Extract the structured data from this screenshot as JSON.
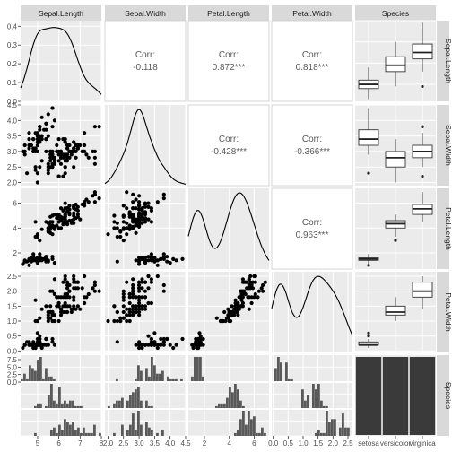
{
  "chart_data": {
    "type": "scatter",
    "variables": [
      "Sepal.Length",
      "Sepal.Width",
      "Petal.Length",
      "Petal.Width",
      "Species"
    ],
    "species_levels": [
      "setosa",
      "versicolor",
      "virginica"
    ],
    "species_tick_labels": [
      "setosa",
      "versicolor",
      "virginica"
    ],
    "colors": {
      "panel_bg": "#ebebeb",
      "grid": "#ffffff",
      "strip_bg": "#d9d9d9",
      "box_fill": "#ffffff",
      "bar_fill": "#595959",
      "points": "#000000",
      "border": "#cccccc"
    },
    "grid": true,
    "axes": {
      "Sepal.Length": {
        "range": [
          4.2,
          8.0
        ],
        "ticks": [
          5,
          6,
          7,
          8
        ],
        "tick_labels": [
          "5",
          "6",
          "7",
          "8"
        ]
      },
      "Sepal.Width": {
        "range": [
          1.9,
          4.5
        ],
        "ticks": [
          2.0,
          2.5,
          3.0,
          3.5,
          4.0,
          4.5
        ],
        "tick_labels": [
          "2.0",
          "2.5",
          "3.0",
          "3.5",
          "4.0",
          "4.5"
        ]
      },
      "Petal.Length": {
        "range": [
          0.7,
          7.2
        ],
        "ticks": [
          2,
          4,
          6
        ],
        "tick_labels": [
          "2",
          "4",
          "6"
        ]
      },
      "Petal.Width": {
        "range": [
          -0.05,
          2.65
        ],
        "ticks": [
          0.0,
          0.5,
          1.0,
          1.5,
          2.0,
          2.5
        ],
        "tick_labels": [
          "0.0",
          "0.5",
          "1.0",
          "1.5",
          "2.0",
          "2.5"
        ]
      }
    },
    "left_axis": {
      "row1": {
        "range": [
          0,
          0.43
        ],
        "ticks": [
          0.0,
          0.1,
          0.2,
          0.3,
          0.4
        ],
        "tick_labels": [
          "0.0",
          "0.1",
          "0.2",
          "0.3",
          "0.4"
        ]
      },
      "row5": {
        "ticks": [
          0.0,
          2.5,
          5.0,
          7.5
        ],
        "tick_labels": [
          "0.0",
          "2.5",
          "5.0",
          "7.5"
        ]
      }
    },
    "correlations": [
      {
        "row": "Sepal.Length",
        "col": "Sepal.Width",
        "label": "Corr:",
        "value": "-0.118"
      },
      {
        "row": "Sepal.Length",
        "col": "Petal.Length",
        "label": "Corr:",
        "value": "0.872***"
      },
      {
        "row": "Sepal.Length",
        "col": "Petal.Width",
        "label": "Corr:",
        "value": "0.818***"
      },
      {
        "row": "Sepal.Width",
        "col": "Petal.Length",
        "label": "Corr:",
        "value": "-0.428***"
      },
      {
        "row": "Sepal.Width",
        "col": "Petal.Width",
        "label": "Corr:",
        "value": "-0.366***"
      },
      {
        "row": "Petal.Length",
        "col": "Petal.Width",
        "label": "Corr:",
        "value": "0.963***"
      }
    ],
    "species_counts": [
      50,
      50,
      50
    ],
    "boxplots": {
      "Sepal.Length": [
        {
          "species": "setosa",
          "whisker_low": 4.3,
          "q1": 4.8,
          "median": 5.0,
          "q3": 5.2,
          "whisker_high": 5.8,
          "outliers": []
        },
        {
          "species": "versicolor",
          "whisker_low": 4.9,
          "q1": 5.6,
          "median": 5.9,
          "q3": 6.3,
          "whisker_high": 7.0,
          "outliers": []
        },
        {
          "species": "virginica",
          "whisker_low": 5.6,
          "q1": 6.2,
          "median": 6.5,
          "q3": 6.9,
          "whisker_high": 7.9,
          "outliers": [
            4.9
          ]
        }
      ],
      "Sepal.Width": [
        {
          "species": "setosa",
          "whisker_low": 2.9,
          "q1": 3.2,
          "median": 3.4,
          "q3": 3.7,
          "whisker_high": 4.4,
          "outliers": [
            2.3
          ]
        },
        {
          "species": "versicolor",
          "whisker_low": 2.0,
          "q1": 2.5,
          "median": 2.8,
          "q3": 3.0,
          "whisker_high": 3.4,
          "outliers": []
        },
        {
          "species": "virginica",
          "whisker_low": 2.5,
          "q1": 2.8,
          "median": 3.0,
          "q3": 3.2,
          "whisker_high": 3.6,
          "outliers": [
            2.2,
            3.8,
            3.8
          ]
        }
      ],
      "Petal.Length": [
        {
          "species": "setosa",
          "whisker_low": 1.1,
          "q1": 1.4,
          "median": 1.5,
          "q3": 1.6,
          "whisker_high": 1.9,
          "outliers": [
            1.0
          ]
        },
        {
          "species": "versicolor",
          "whisker_low": 3.3,
          "q1": 4.0,
          "median": 4.35,
          "q3": 4.6,
          "whisker_high": 5.1,
          "outliers": [
            3.0
          ]
        },
        {
          "species": "virginica",
          "whisker_low": 4.5,
          "q1": 5.1,
          "median": 5.55,
          "q3": 5.9,
          "whisker_high": 6.9,
          "outliers": []
        }
      ],
      "Petal.Width": [
        {
          "species": "setosa",
          "whisker_low": 0.1,
          "q1": 0.2,
          "median": 0.2,
          "q3": 0.3,
          "whisker_high": 0.4,
          "outliers": [
            0.5,
            0.6
          ]
        },
        {
          "species": "versicolor",
          "whisker_low": 1.0,
          "q1": 1.2,
          "median": 1.3,
          "q3": 1.5,
          "whisker_high": 1.8,
          "outliers": []
        },
        {
          "species": "virginica",
          "whisker_low": 1.4,
          "q1": 1.8,
          "median": 2.0,
          "q3": 2.3,
          "whisker_high": 2.5,
          "outliers": []
        }
      ]
    },
    "scatter": {
      "Sepal.Length": [
        5.1,
        4.9,
        4.7,
        4.6,
        5.0,
        5.4,
        4.6,
        5.0,
        4.4,
        4.9,
        5.4,
        4.8,
        4.8,
        4.3,
        5.8,
        5.7,
        5.4,
        5.1,
        5.7,
        5.1,
        5.4,
        5.1,
        4.6,
        5.1,
        4.8,
        5.0,
        5.0,
        5.2,
        5.2,
        4.7,
        4.8,
        5.4,
        5.2,
        5.5,
        4.9,
        5.0,
        5.5,
        4.9,
        4.4,
        5.1,
        5.0,
        4.5,
        4.4,
        5.0,
        5.1,
        4.8,
        5.1,
        4.6,
        5.3,
        5.0,
        7.0,
        6.4,
        6.9,
        5.5,
        6.5,
        5.7,
        6.3,
        4.9,
        6.6,
        5.2,
        5.0,
        5.9,
        6.0,
        6.1,
        5.6,
        6.7,
        5.6,
        5.8,
        6.2,
        5.6,
        5.9,
        6.1,
        6.3,
        6.1,
        6.4,
        6.6,
        6.8,
        6.7,
        6.0,
        5.7,
        5.5,
        5.5,
        5.8,
        6.0,
        5.4,
        6.0,
        6.7,
        6.3,
        5.6,
        5.5,
        5.5,
        6.1,
        5.8,
        5.0,
        5.6,
        5.7,
        5.7,
        6.2,
        5.1,
        5.7,
        6.3,
        5.8,
        7.1,
        6.3,
        6.5,
        7.6,
        4.9,
        7.3,
        6.7,
        7.2,
        6.5,
        6.4,
        6.8,
        5.7,
        5.8,
        6.4,
        6.5,
        7.7,
        7.7,
        6.0,
        6.9,
        5.6,
        7.7,
        6.3,
        6.7,
        7.2,
        6.2,
        6.1,
        6.4,
        7.2,
        7.4,
        7.9,
        6.4,
        6.3,
        6.1,
        7.7,
        6.3,
        6.4,
        6.0,
        6.9,
        6.7,
        6.9,
        5.8,
        6.8,
        6.7,
        6.7,
        6.3,
        6.5,
        6.2,
        5.9
      ],
      "Sepal.Width": [
        3.5,
        3.0,
        3.2,
        3.1,
        3.6,
        3.9,
        3.4,
        3.4,
        2.9,
        3.1,
        3.7,
        3.4,
        3.0,
        3.0,
        4.0,
        4.4,
        3.9,
        3.5,
        3.8,
        3.8,
        3.4,
        3.7,
        3.6,
        3.3,
        3.4,
        3.0,
        3.4,
        3.5,
        3.4,
        3.2,
        3.1,
        3.4,
        4.1,
        4.2,
        3.1,
        3.2,
        3.5,
        3.6,
        3.0,
        3.4,
        3.5,
        2.3,
        3.2,
        3.5,
        3.8,
        3.0,
        3.8,
        3.2,
        3.7,
        3.3,
        3.2,
        3.2,
        3.1,
        2.3,
        2.8,
        2.8,
        3.3,
        2.4,
        2.9,
        2.7,
        2.0,
        3.0,
        2.2,
        2.9,
        2.9,
        3.1,
        3.0,
        2.7,
        2.2,
        2.5,
        3.2,
        2.8,
        2.5,
        2.8,
        2.9,
        3.0,
        2.8,
        3.0,
        2.9,
        2.6,
        2.4,
        2.4,
        2.7,
        2.7,
        3.0,
        3.4,
        3.1,
        2.3,
        3.0,
        2.5,
        2.6,
        3.0,
        2.6,
        2.3,
        2.7,
        3.0,
        2.9,
        2.9,
        2.5,
        2.8,
        3.3,
        2.7,
        3.0,
        2.9,
        3.0,
        3.0,
        2.5,
        2.9,
        2.5,
        3.6,
        3.2,
        2.7,
        3.0,
        2.5,
        2.8,
        3.2,
        3.0,
        3.8,
        2.6,
        2.2,
        3.2,
        2.8,
        2.8,
        2.7,
        3.3,
        3.2,
        2.8,
        3.0,
        2.8,
        3.0,
        2.8,
        3.8,
        2.8,
        2.8,
        2.6,
        3.0,
        3.4,
        3.1,
        3.0,
        3.1,
        3.1,
        3.1,
        2.7,
        3.2,
        3.3,
        3.0,
        2.5,
        3.0,
        3.4,
        3.0
      ],
      "Petal.Length": [
        1.4,
        1.4,
        1.3,
        1.5,
        1.4,
        1.7,
        1.4,
        1.5,
        1.4,
        1.5,
        1.5,
        1.6,
        1.4,
        1.1,
        1.2,
        1.5,
        1.3,
        1.4,
        1.7,
        1.5,
        1.7,
        1.5,
        1.0,
        1.7,
        1.9,
        1.6,
        1.6,
        1.5,
        1.4,
        1.6,
        1.6,
        1.5,
        1.5,
        1.4,
        1.5,
        1.2,
        1.3,
        1.4,
        1.3,
        1.5,
        1.3,
        1.3,
        1.3,
        1.6,
        1.9,
        1.4,
        1.6,
        1.4,
        1.5,
        1.4,
        4.7,
        4.5,
        4.9,
        4.0,
        4.6,
        4.5,
        4.7,
        3.3,
        4.6,
        3.9,
        3.5,
        4.2,
        4.0,
        4.7,
        3.6,
        4.4,
        4.5,
        4.1,
        4.5,
        3.9,
        4.8,
        4.0,
        4.9,
        4.7,
        4.3,
        4.4,
        4.8,
        5.0,
        4.5,
        3.5,
        3.8,
        3.7,
        3.9,
        5.1,
        4.5,
        4.5,
        4.7,
        4.4,
        4.1,
        4.0,
        4.4,
        4.6,
        4.0,
        3.3,
        4.2,
        4.2,
        4.2,
        4.3,
        3.0,
        4.1,
        6.0,
        5.1,
        5.9,
        5.6,
        5.8,
        6.6,
        4.5,
        6.3,
        5.8,
        6.1,
        5.1,
        5.3,
        5.5,
        5.0,
        5.1,
        5.3,
        5.5,
        6.7,
        6.9,
        5.0,
        5.7,
        4.9,
        6.7,
        4.9,
        5.7,
        6.0,
        4.8,
        4.9,
        5.6,
        5.8,
        6.1,
        6.4,
        5.6,
        5.1,
        5.6,
        6.1,
        5.6,
        5.5,
        4.8,
        5.4,
        5.6,
        5.1,
        5.1,
        5.9,
        5.7,
        5.2,
        5.0,
        5.2,
        5.4,
        5.1
      ],
      "Petal.Width": [
        0.2,
        0.2,
        0.2,
        0.2,
        0.2,
        0.4,
        0.3,
        0.2,
        0.2,
        0.1,
        0.2,
        0.2,
        0.1,
        0.1,
        0.2,
        0.4,
        0.4,
        0.3,
        0.3,
        0.3,
        0.2,
        0.4,
        0.2,
        0.5,
        0.2,
        0.2,
        0.4,
        0.2,
        0.2,
        0.2,
        0.2,
        0.4,
        0.1,
        0.2,
        0.2,
        0.2,
        0.2,
        0.1,
        0.2,
        0.2,
        0.3,
        0.3,
        0.2,
        0.6,
        0.4,
        0.3,
        0.2,
        0.2,
        0.2,
        0.2,
        1.4,
        1.5,
        1.5,
        1.3,
        1.5,
        1.3,
        1.6,
        1.0,
        1.3,
        1.4,
        1.0,
        1.5,
        1.0,
        1.4,
        1.3,
        1.4,
        1.5,
        1.0,
        1.5,
        1.1,
        1.8,
        1.3,
        1.5,
        1.2,
        1.3,
        1.4,
        1.4,
        1.7,
        1.5,
        1.0,
        1.1,
        1.0,
        1.2,
        1.6,
        1.5,
        1.6,
        1.5,
        1.3,
        1.3,
        1.3,
        1.2,
        1.4,
        1.2,
        1.0,
        1.3,
        1.2,
        1.3,
        1.3,
        1.1,
        1.3,
        2.5,
        1.9,
        2.1,
        1.8,
        2.2,
        2.1,
        1.7,
        1.8,
        1.8,
        2.5,
        2.0,
        1.9,
        2.1,
        2.0,
        2.4,
        2.3,
        1.8,
        2.2,
        2.3,
        1.5,
        2.3,
        2.0,
        2.0,
        1.8,
        2.1,
        1.8,
        1.8,
        1.8,
        2.1,
        1.6,
        1.9,
        2.0,
        2.2,
        1.5,
        1.4,
        2.3,
        2.4,
        1.8,
        1.8,
        2.1,
        2.4,
        2.3,
        1.9,
        2.3,
        2.5,
        2.3,
        1.9,
        2.0,
        2.3,
        1.8
      ]
    },
    "strip_labels": {
      "top": [
        "Sepal.Length",
        "Sepal.Width",
        "Petal.Length",
        "Petal.Width",
        "Species"
      ],
      "right": [
        "Sepal.Length",
        "Sepal.Width",
        "Petal.Length",
        "Petal.Width",
        "Species"
      ]
    }
  }
}
